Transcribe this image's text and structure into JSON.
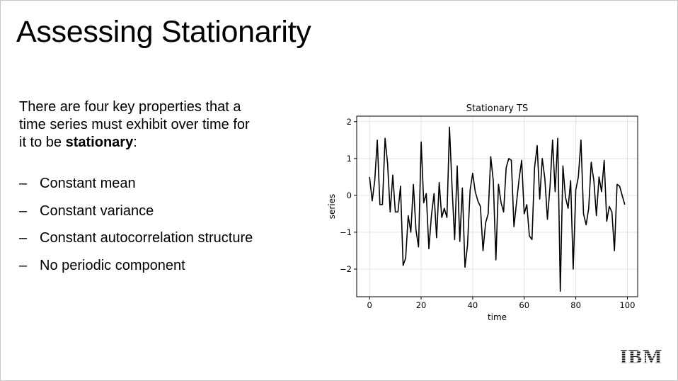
{
  "slide": {
    "title": "Assessing Stationarity",
    "intro_before": "There are four key properties that a time series must exhibit over time for it to be ",
    "intro_bold": "stationary",
    "intro_after": ":",
    "bullets": [
      "Constant mean",
      "Constant variance",
      "Constant autocorrelation structure",
      "No periodic component"
    ],
    "bullet_marker": "–",
    "logo_text": "IBM"
  },
  "chart_data": {
    "type": "line",
    "title": "Stationary TS",
    "xlabel": "time",
    "ylabel": "series",
    "xlim": [
      -5,
      104
    ],
    "ylim": [
      -2.75,
      2.15
    ],
    "x_ticks": [
      0,
      20,
      40,
      60,
      80,
      100
    ],
    "x_tick_labels": [
      "0",
      "20",
      "40",
      "60",
      "80",
      "100"
    ],
    "y_ticks": [
      -2,
      -1,
      0,
      1,
      2
    ],
    "y_tick_labels": [
      "−2",
      "−1",
      "0",
      "1",
      "2"
    ],
    "grid": true,
    "line_color": "#000000",
    "x": [
      0,
      1,
      2,
      3,
      4,
      5,
      6,
      7,
      8,
      9,
      10,
      11,
      12,
      13,
      14,
      15,
      16,
      17,
      18,
      19,
      20,
      21,
      22,
      23,
      24,
      25,
      26,
      27,
      28,
      29,
      30,
      31,
      32,
      33,
      34,
      35,
      36,
      37,
      38,
      39,
      40,
      41,
      42,
      43,
      44,
      45,
      46,
      47,
      48,
      49,
      50,
      51,
      52,
      53,
      54,
      55,
      56,
      57,
      58,
      59,
      60,
      61,
      62,
      63,
      64,
      65,
      66,
      67,
      68,
      69,
      70,
      71,
      72,
      73,
      74,
      75,
      76,
      77,
      78,
      79,
      80,
      81,
      82,
      83,
      84,
      85,
      86,
      87,
      88,
      89,
      90,
      91,
      92,
      93,
      94,
      95,
      96,
      97,
      98,
      99
    ],
    "y": [
      0.5,
      -0.15,
      0.4,
      1.5,
      -0.25,
      -0.25,
      1.55,
      0.85,
      -0.45,
      0.55,
      -0.45,
      -0.45,
      0.25,
      -1.9,
      -1.7,
      -0.55,
      -1.0,
      0.3,
      -0.95,
      -1.4,
      1.45,
      -0.2,
      0.05,
      -1.45,
      -0.55,
      0.05,
      -1.15,
      0.35,
      -0.6,
      -0.35,
      -0.6,
      1.85,
      0.2,
      -1.2,
      0.8,
      -1.25,
      0.2,
      -1.95,
      -1.35,
      0.15,
      0.6,
      0.1,
      -0.15,
      -0.3,
      -1.5,
      -0.75,
      -0.5,
      1.05,
      0.4,
      -1.75,
      0.3,
      -0.2,
      -0.45,
      0.75,
      1.0,
      0.95,
      -0.85,
      -0.2,
      0.45,
      0.95,
      -0.5,
      -0.25,
      -1.1,
      -1.2,
      0.75,
      1.35,
      -0.1,
      1.0,
      0.45,
      -0.65,
      0.25,
      1.5,
      0.1,
      1.55,
      -2.6,
      0.8,
      -0.05,
      -0.35,
      0.4,
      -2.0,
      0.15,
      0.5,
      1.5,
      -0.5,
      -0.8,
      -0.35,
      0.9,
      0.4,
      -0.55,
      0.5,
      0.1,
      0.95,
      -0.7,
      -0.3,
      -0.45,
      -1.5,
      0.3,
      0.25,
      0.0,
      -0.25
    ]
  }
}
